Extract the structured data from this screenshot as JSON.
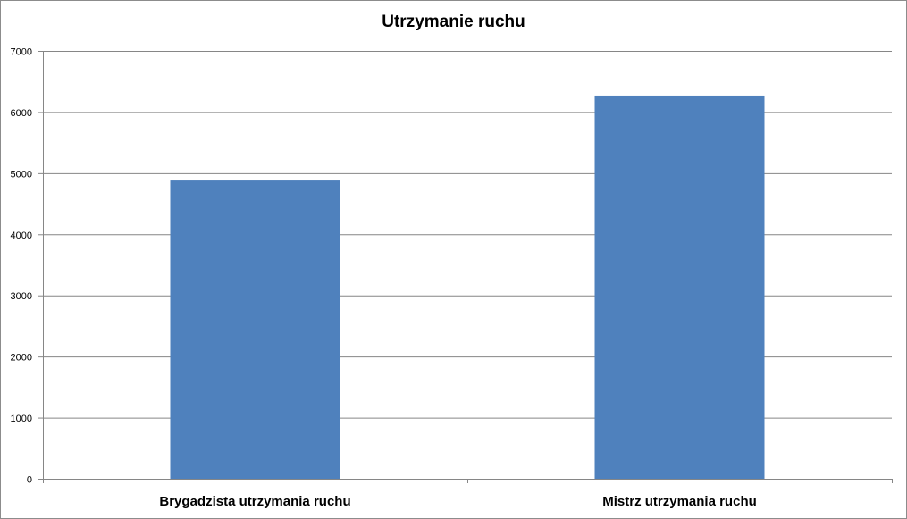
{
  "chart_data": {
    "type": "bar",
    "title": "Utrzymanie ruchu",
    "categories": [
      "Brygadzista utrzymania ruchu",
      "Mistrz utrzymania ruchu"
    ],
    "values": [
      4880,
      6270
    ],
    "ylim": [
      0,
      7000
    ],
    "yticks": [
      0,
      1000,
      2000,
      3000,
      4000,
      5000,
      6000,
      7000
    ],
    "grid": true,
    "bar_color": "#4f81bd",
    "gridline_color": "#868686"
  }
}
